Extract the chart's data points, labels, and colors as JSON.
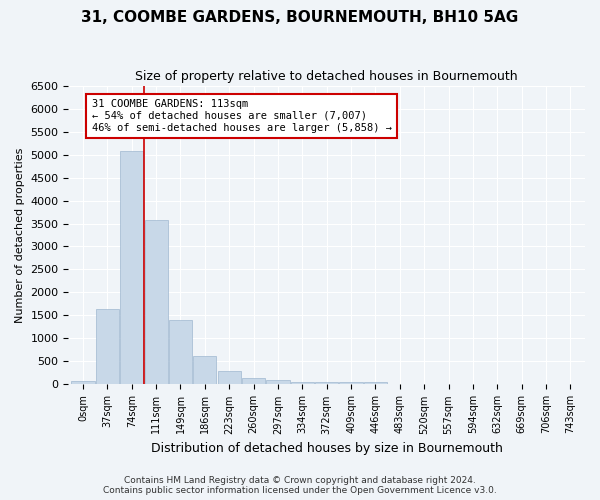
{
  "title": "31, COOMBE GARDENS, BOURNEMOUTH, BH10 5AG",
  "subtitle": "Size of property relative to detached houses in Bournemouth",
  "xlabel": "Distribution of detached houses by size in Bournemouth",
  "ylabel": "Number of detached properties",
  "bar_color": "#c8d8e8",
  "bar_edge_color": "#a0b8d0",
  "background_color": "#f0f4f8",
  "grid_color": "#ffffff",
  "annotation_line_color": "#cc0000",
  "annotation_box_color": "#cc0000",
  "annotation_text": "31 COOMBE GARDENS: 113sqm\n← 54% of detached houses are smaller (7,007)\n46% of semi-detached houses are larger (5,858) →",
  "footer_line1": "Contains HM Land Registry data © Crown copyright and database right 2024.",
  "footer_line2": "Contains public sector information licensed under the Open Government Licence v3.0.",
  "bin_labels": [
    "0sqm",
    "37sqm",
    "74sqm",
    "111sqm",
    "149sqm",
    "186sqm",
    "223sqm",
    "260sqm",
    "297sqm",
    "334sqm",
    "372sqm",
    "409sqm",
    "446sqm",
    "483sqm",
    "520sqm",
    "557sqm",
    "594sqm",
    "632sqm",
    "669sqm",
    "706sqm",
    "743sqm"
  ],
  "bar_heights": [
    75,
    1650,
    5080,
    3580,
    1400,
    610,
    300,
    150,
    90,
    60,
    55,
    45,
    55,
    0,
    0,
    0,
    0,
    0,
    0,
    0,
    0
  ],
  "property_line_x": 2.5,
  "ylim": [
    0,
    6500
  ],
  "yticks": [
    0,
    500,
    1000,
    1500,
    2000,
    2500,
    3000,
    3500,
    4000,
    4500,
    5000,
    5500,
    6000,
    6500
  ]
}
